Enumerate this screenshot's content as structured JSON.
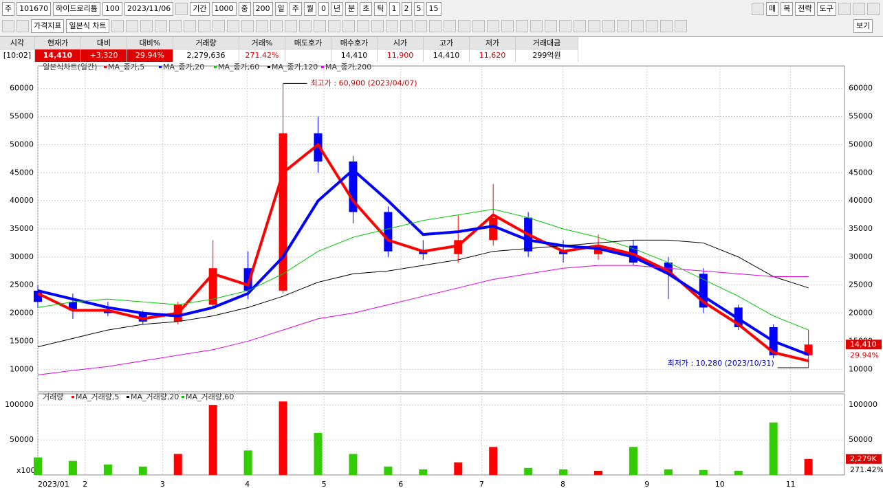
{
  "toolbar": {
    "row1": [
      "주",
      "101670",
      "하이드로리튬",
      "100",
      "2023/11/06",
      "기간",
      "1000",
      "중",
      "200",
      "일",
      "주",
      "월",
      "0",
      "년",
      "분",
      "초",
      "틱",
      "1",
      "2",
      "5",
      "15"
    ],
    "right": [
      "매",
      "복",
      "전략",
      "도구"
    ],
    "row2": [
      "가격지표",
      "일본식 차트"
    ],
    "row2_right": "보기"
  },
  "quote": [
    {
      "header": "시각",
      "value": "[10:02]"
    },
    {
      "header": "현재가",
      "value": "14,410"
    },
    {
      "header": "대비",
      "value": "+3,320"
    },
    {
      "header": "대비%",
      "value": "29.94%"
    },
    {
      "header": "거래량",
      "value": "2,279,636"
    },
    {
      "header": "거래%",
      "value": "271.42%"
    },
    {
      "header": "매도호가"
    },
    {
      "header": "매수호가",
      "value": "14,410"
    },
    {
      "header": "시가",
      "value": "11,900"
    },
    {
      "header": "고가",
      "value": "14,410"
    },
    {
      "header": "저가",
      "value": "11,620"
    },
    {
      "header": "거래대금",
      "value": "299억원"
    }
  ],
  "chart_data": {
    "type": "candlestick",
    "title": "일본식차트(일간)",
    "categories": [
      null,
      null,
      null,
      null,
      null,
      null,
      null,
      null,
      null,
      null,
      null,
      null,
      null,
      null,
      null,
      null,
      null,
      null,
      null,
      null,
      null,
      null,
      null
    ],
    "candles": {
      "open": [
        24000,
        22000,
        20500,
        20000,
        18500,
        21500,
        28000,
        24000,
        52000,
        47000,
        38000,
        31000,
        30500,
        33000,
        37000,
        31000,
        30500,
        32000,
        29000,
        27000,
        21000,
        17500,
        12500
      ],
      "high": [
        25000,
        23500,
        22000,
        20500,
        22000,
        33000,
        31000,
        60900,
        55000,
        48000,
        39000,
        33000,
        37500,
        43000,
        38000,
        33000,
        34000,
        33000,
        30000,
        28000,
        21500,
        18000,
        17000
      ],
      "low": [
        21000,
        19000,
        19500,
        18000,
        18000,
        21000,
        22500,
        23500,
        45000,
        36000,
        30000,
        29500,
        29000,
        32000,
        30000,
        29000,
        29500,
        28500,
        22500,
        20000,
        17000,
        12000,
        10280
      ],
      "close": [
        22000,
        20500,
        20000,
        18500,
        21500,
        28000,
        24000,
        52000,
        47000,
        38000,
        31000,
        30500,
        33000,
        37000,
        31000,
        30500,
        32000,
        29000,
        27000,
        21000,
        17500,
        12500,
        14410
      ]
    },
    "up_color": "#ff0000",
    "down_color": "#0000ff",
    "series": [
      {
        "name": "MA_종가,5",
        "color": "#ff0000",
        "values": [
          23500,
          20500,
          20500,
          19000,
          20000,
          27000,
          25000,
          45000,
          50000,
          40000,
          33000,
          31000,
          32000,
          37500,
          34000,
          31000,
          32000,
          30500,
          27500,
          22000,
          18000,
          13000,
          11500
        ]
      },
      {
        "name": "MA_종가,20",
        "color": "#0000ff",
        "values": [
          24000,
          22500,
          21000,
          20000,
          19500,
          21000,
          23500,
          30000,
          40000,
          45500,
          40000,
          34000,
          34500,
          35500,
          33000,
          32000,
          31500,
          30000,
          27000,
          23000,
          19000,
          15000,
          12600
        ]
      },
      {
        "name": "MA_종가,60",
        "color": "#00c800",
        "values": [
          21000,
          22000,
          22500,
          22000,
          21500,
          22500,
          24000,
          27000,
          31000,
          33500,
          35000,
          36500,
          37500,
          38500,
          37000,
          35000,
          33500,
          31500,
          29000,
          26000,
          23000,
          19500,
          17000
        ]
      },
      {
        "name": "MA_종가,120",
        "color": "#000000",
        "values": [
          14000,
          15500,
          17000,
          18000,
          18500,
          19500,
          21000,
          23000,
          25500,
          27000,
          27500,
          28500,
          29500,
          31000,
          31500,
          32000,
          32500,
          33000,
          33000,
          32500,
          30000,
          26500,
          24500
        ]
      },
      {
        "name": "MA_종가,200",
        "color": "#e000e0",
        "values": [
          9000,
          9800,
          10500,
          11500,
          12500,
          13500,
          15000,
          17000,
          19000,
          20000,
          21500,
          23000,
          24500,
          26000,
          27000,
          28000,
          28500,
          28500,
          28000,
          27500,
          27000,
          26500,
          26500
        ]
      }
    ],
    "xlim": [
      0,
      22.4
    ],
    "xticks": [
      {
        "value": 0,
        "label": "2023/01"
      },
      {
        "value": 1.35,
        "label": "2"
      },
      {
        "value": 3.56,
        "label": "3"
      },
      {
        "value": 5.98,
        "label": "4"
      },
      {
        "value": 8.17,
        "label": "5"
      },
      {
        "value": 10.36,
        "label": "6"
      },
      {
        "value": 12.67,
        "label": "7"
      },
      {
        "value": 14.99,
        "label": "8"
      },
      {
        "value": 17.39,
        "label": "9"
      },
      {
        "value": 19.47,
        "label": "10"
      },
      {
        "value": 21.49,
        "label": "11"
      }
    ],
    "ylim": [
      6000,
      64000
    ],
    "yticks": [
      10000,
      15000,
      20000,
      25000,
      30000,
      35000,
      40000,
      45000,
      50000,
      55000,
      60000
    ],
    "annotations": [
      {
        "text": "최고가 : 60,900 (2023/04/07)",
        "color": "#d00000"
      },
      {
        "text": "최저가 : 10,280 (2023/10/31)",
        "color": "#0000c0"
      }
    ],
    "price_labels": [
      "14,410",
      "29.94%"
    ],
    "volume": {
      "title": "거래량",
      "legend": [
        {
          "name": "MA_거래량,5",
          "color": "#ff0000"
        },
        {
          "name": "MA_거래량,20",
          "color": "#000000"
        },
        {
          "name": "MA_거래량,60",
          "color": "#00c800"
        }
      ],
      "values": [
        25000,
        20000,
        15000,
        12000,
        30000,
        100000,
        35000,
        105000,
        60000,
        30000,
        12000,
        8000,
        18000,
        40000,
        10000,
        8000,
        6000,
        40000,
        8000,
        7000,
        6000,
        75000,
        22796
      ],
      "ylim": [
        0,
        110000
      ],
      "yticks": [
        50000,
        100000
      ],
      "unit": "x100",
      "labels": [
        "2,279K",
        "271.42%"
      ]
    }
  }
}
